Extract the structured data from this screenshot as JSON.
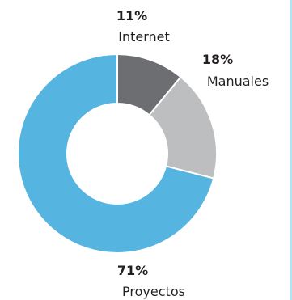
{
  "chart_data": {
    "type": "pie",
    "slices": [
      {
        "label": "Internet",
        "value": 11,
        "value_label": "11%",
        "color": "#6d6e71"
      },
      {
        "label": "Manuales",
        "value": 18,
        "value_label": "18%",
        "color": "#bcbec0"
      },
      {
        "label": "Proyectos",
        "value": 71,
        "value_label": "71%",
        "color": "#56b4e0"
      }
    ],
    "hole": true,
    "separator_color": "#ffffff",
    "frame_color": "#b5e3f6"
  }
}
